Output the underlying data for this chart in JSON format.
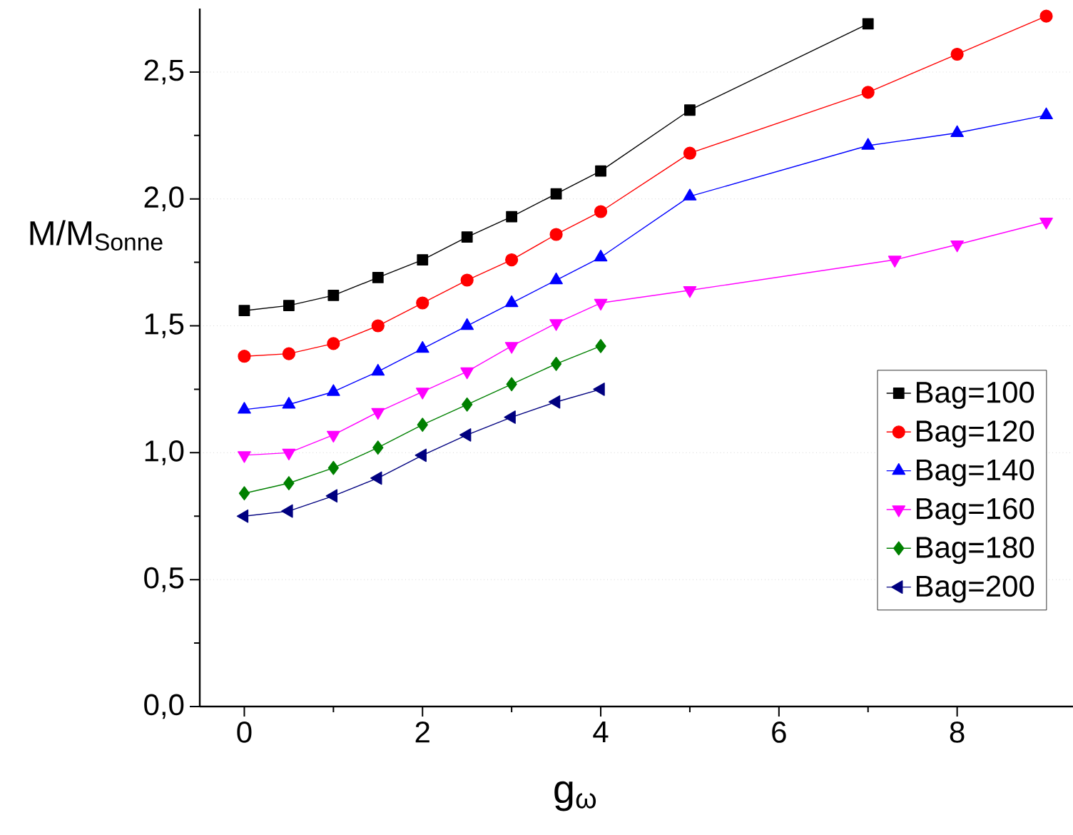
{
  "chart_data": {
    "type": "line",
    "xlabel": "g$_{ω}$",
    "ylabel": "M/M$_{Sonne}$",
    "xlim": [
      -0.5,
      9.3
    ],
    "ylim": [
      0,
      2.75
    ],
    "xticks": [
      0,
      2,
      4,
      6,
      8
    ],
    "yticks": [
      {
        "value": 0,
        "label": "0,0"
      },
      {
        "value": 0.5,
        "label": "0,5"
      },
      {
        "value": 1,
        "label": "1,0"
      },
      {
        "value": 1.5,
        "label": "1,5"
      },
      {
        "value": 2,
        "label": "2,0"
      },
      {
        "value": 2.5,
        "label": "2,5"
      }
    ],
    "grid": "y",
    "legend": "right",
    "line_style": "solid",
    "series": [
      {
        "name": "Bag=100",
        "color": "#000000",
        "marker": "square",
        "x": [
          0,
          0.5,
          1,
          1.5,
          2,
          2.5,
          3,
          3.5,
          4,
          5,
          7
        ],
        "values": [
          1.56,
          1.58,
          1.62,
          1.69,
          1.76,
          1.85,
          1.93,
          2.02,
          2.11,
          2.35,
          2.69
        ]
      },
      {
        "name": "Bag=120",
        "color": "#ff0000",
        "marker": "circle",
        "x": [
          0,
          0.5,
          1,
          1.5,
          2,
          2.5,
          3,
          3.5,
          4,
          5,
          7,
          8,
          9
        ],
        "values": [
          1.38,
          1.39,
          1.43,
          1.5,
          1.59,
          1.68,
          1.76,
          1.86,
          1.95,
          2.18,
          2.42,
          2.57,
          2.72
        ]
      },
      {
        "name": "Bag=140",
        "color": "#0000ff",
        "marker": "triangle",
        "x": [
          0,
          0.5,
          1,
          1.5,
          2,
          2.5,
          3,
          3.5,
          4,
          5,
          7,
          8,
          9
        ],
        "values": [
          1.17,
          1.19,
          1.24,
          1.32,
          1.41,
          1.5,
          1.59,
          1.68,
          1.77,
          2.01,
          2.21,
          2.26,
          2.33
        ]
      },
      {
        "name": "Bag=160",
        "color": "#ff00ff",
        "marker": "triangle-down",
        "x": [
          0,
          0.5,
          1,
          1.5,
          2,
          2.5,
          3,
          3.5,
          4,
          5,
          7.3,
          8,
          9
        ],
        "values": [
          0.99,
          1.0,
          1.07,
          1.16,
          1.24,
          1.32,
          1.42,
          1.51,
          1.59,
          1.64,
          1.76,
          1.82,
          1.91
        ]
      },
      {
        "name": "Bag=180",
        "color": "#008000",
        "marker": "diamond",
        "x": [
          0,
          0.5,
          1,
          1.5,
          2,
          2.5,
          3,
          3.5,
          4
        ],
        "values": [
          0.84,
          0.88,
          0.94,
          1.02,
          1.11,
          1.19,
          1.27,
          1.35,
          1.42
        ]
      },
      {
        "name": "Bag=200",
        "color": "#000080",
        "marker": "triangle-left",
        "x": [
          0,
          0.5,
          1,
          1.5,
          2,
          2.5,
          3,
          3.5,
          4
        ],
        "values": [
          0.75,
          0.77,
          0.83,
          0.9,
          0.99,
          1.07,
          1.14,
          1.2,
          1.25
        ]
      }
    ]
  }
}
